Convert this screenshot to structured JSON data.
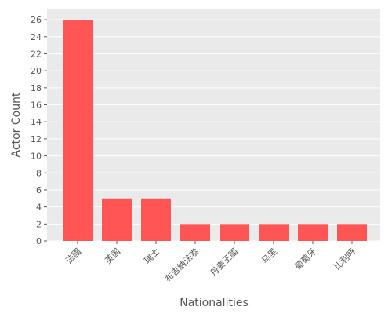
{
  "chart_data": {
    "type": "bar",
    "categories": [
      "法國",
      "英国",
      "瑞士",
      "布吉納法索",
      "丹麥王國",
      "马里",
      "葡萄牙",
      "比利時"
    ],
    "values": [
      26,
      5,
      5,
      2,
      2,
      2,
      2,
      2
    ],
    "xlabel": "Nationalities",
    "ylabel": "Actor Count",
    "ylim": [
      0,
      27.3
    ],
    "yticks": [
      0,
      2,
      4,
      6,
      8,
      10,
      12,
      14,
      16,
      18,
      20,
      22,
      24,
      26
    ],
    "grid": true,
    "bar_color": "#ff5555",
    "background_color": "#eaeaea",
    "grid_color": "#ffffff"
  }
}
